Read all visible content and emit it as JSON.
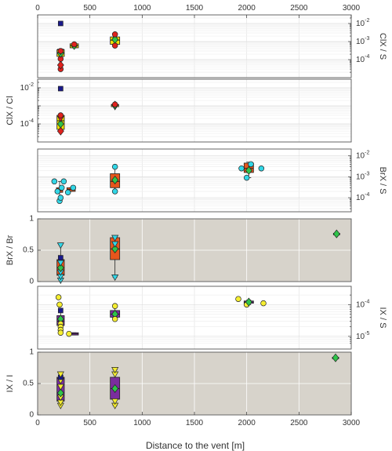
{
  "colors": {
    "panel_white": "#ffffff",
    "panel_gray": "#d7d3cb",
    "box_yellow": "#f2e200",
    "box_orange": "#e6561c",
    "box_purple": "#7a2e9e",
    "red_marker": "#e0221d",
    "green_marker": "#2fc44a",
    "cyan_marker": "#32d6e6",
    "yellow_marker": "#f5ee32",
    "navy_marker": "#1a1a8c"
  },
  "chart_data": {
    "type": "box",
    "xlabel": "Distance to the vent [m]",
    "xlim": [
      0,
      3000
    ],
    "xticks": [
      0,
      500,
      1000,
      1500,
      2000,
      2500,
      3000
    ],
    "panels": [
      {
        "id": "p1",
        "ylabel": "ClX / S",
        "label_side": "right",
        "scale": "log",
        "ylim": [
          1.5e-05,
          0.02
        ],
        "yticks": [
          0.0001,
          0.001,
          0.01
        ],
        "yticklabels": [
          "10-4",
          "10-3",
          "10-2"
        ],
        "background": "white",
        "boxes": [
          {
            "x": 220,
            "q1": 0.00015,
            "median": 0.00025,
            "q3": 0.00035,
            "whislo": 0.00012,
            "whishi": 0.0004,
            "color": "yellow",
            "width": 70
          },
          {
            "x": 350,
            "q1": 0.00045,
            "median": 0.0006,
            "q3": 0.00075,
            "whislo": 0.00045,
            "whishi": 0.00075,
            "color": "yellow",
            "width": 80
          },
          {
            "x": 740,
            "q1": 0.0007,
            "median": 0.0012,
            "q3": 0.0018,
            "whislo": 0.0006,
            "whishi": 0.0025,
            "color": "yellow",
            "width": 90
          }
        ],
        "points": [
          {
            "x": 220,
            "y": 3e-05,
            "marker": "circle",
            "color": "red"
          },
          {
            "x": 220,
            "y": 5e-05,
            "marker": "diamond",
            "color": "red"
          },
          {
            "x": 220,
            "y": 0.00011,
            "marker": "circle",
            "color": "red"
          },
          {
            "x": 220,
            "y": 0.00022,
            "marker": "diamond",
            "color": "green"
          },
          {
            "x": 220,
            "y": 0.00028,
            "marker": "triangle-down",
            "color": "red"
          },
          {
            "x": 220,
            "y": 0.0003,
            "marker": "circle",
            "color": "red"
          },
          {
            "x": 220,
            "y": 0.01,
            "marker": "square",
            "color": "navy"
          },
          {
            "x": 350,
            "y": 0.0006,
            "marker": "diamond",
            "color": "green"
          },
          {
            "x": 350,
            "y": 0.0007,
            "marker": "circle",
            "color": "red"
          },
          {
            "x": 740,
            "y": 0.0006,
            "marker": "circle",
            "color": "red"
          },
          {
            "x": 740,
            "y": 0.0013,
            "marker": "diamond",
            "color": "green"
          },
          {
            "x": 740,
            "y": 0.0025,
            "marker": "circle",
            "color": "red"
          }
        ]
      },
      {
        "id": "p2",
        "ylabel": "ClX / Cl",
        "label_side": "left",
        "scale": "log",
        "ylim": [
          1.5e-05,
          0.02
        ],
        "yticks": [
          0.0001,
          0.01
        ],
        "yticklabels": [
          "10-4",
          "10-2"
        ],
        "background": "white",
        "boxes": [
          {
            "x": 220,
            "q1": 5e-05,
            "median": 0.00015,
            "q3": 0.0003,
            "whislo": 4e-05,
            "whishi": 0.0003,
            "color": "yellow",
            "width": 70
          },
          {
            "x": 740,
            "q1": 0.0009,
            "median": 0.0011,
            "q3": 0.0012,
            "whislo": 0.0008,
            "whishi": 0.0013,
            "color": "yellow",
            "width": 70
          }
        ],
        "points": [
          {
            "x": 220,
            "y": 4e-05,
            "marker": "diamond",
            "color": "red"
          },
          {
            "x": 220,
            "y": 0.0001,
            "marker": "diamond",
            "color": "green"
          },
          {
            "x": 220,
            "y": 0.0002,
            "marker": "triangle-down",
            "color": "red"
          },
          {
            "x": 220,
            "y": 0.0003,
            "marker": "circle",
            "color": "red"
          },
          {
            "x": 220,
            "y": 0.009,
            "marker": "square",
            "color": "navy"
          },
          {
            "x": 740,
            "y": 0.0009,
            "marker": "triangle-down",
            "color": "red"
          },
          {
            "x": 740,
            "y": 0.0011,
            "marker": "diamond",
            "color": "green"
          },
          {
            "x": 740,
            "y": 0.0012,
            "marker": "circle",
            "color": "red"
          }
        ]
      },
      {
        "id": "p3",
        "ylabel": "BrX / S",
        "label_side": "right",
        "scale": "log",
        "ylim": [
          3e-05,
          0.015
        ],
        "yticks": [
          0.0001,
          0.001,
          0.01
        ],
        "yticklabels": [
          "10-4",
          "10-3",
          "10-2"
        ],
        "background": "white",
        "boxes": [
          {
            "x": 210,
            "q1": 0.00018,
            "median": 0.00022,
            "q3": 0.0003,
            "whislo": 0.0001,
            "whishi": 0.0006,
            "color": "orange",
            "width": 60
          },
          {
            "x": 320,
            "q1": 0.0002,
            "median": 0.00025,
            "q3": 0.0003,
            "whislo": 0.0002,
            "whishi": 0.0003,
            "color": "orange",
            "width": 80
          },
          {
            "x": 740,
            "q1": 0.0003,
            "median": 0.0006,
            "q3": 0.0014,
            "whislo": 0.0002,
            "whishi": 0.003,
            "color": "orange",
            "width": 90
          },
          {
            "x": 2020,
            "q1": 0.0016,
            "median": 0.0025,
            "q3": 0.0045,
            "whislo": 0.0009,
            "whishi": 0.005,
            "color": "orange",
            "width": 90
          }
        ],
        "points": [
          {
            "x": 160,
            "y": 0.0006,
            "marker": "circle",
            "color": "cyan"
          },
          {
            "x": 190,
            "y": 0.0002,
            "marker": "circle",
            "color": "cyan"
          },
          {
            "x": 210,
            "y": 7e-05,
            "marker": "circle",
            "color": "cyan"
          },
          {
            "x": 220,
            "y": 0.0001,
            "marker": "circle",
            "color": "cyan"
          },
          {
            "x": 230,
            "y": 0.0003,
            "marker": "circle",
            "color": "cyan"
          },
          {
            "x": 250,
            "y": 0.0006,
            "marker": "circle",
            "color": "cyan"
          },
          {
            "x": 290,
            "y": 0.00018,
            "marker": "circle",
            "color": "cyan"
          },
          {
            "x": 340,
            "y": 0.0003,
            "marker": "circle",
            "color": "cyan"
          },
          {
            "x": 740,
            "y": 0.0002,
            "marker": "circle",
            "color": "cyan"
          },
          {
            "x": 740,
            "y": 0.0007,
            "marker": "diamond",
            "color": "green"
          },
          {
            "x": 740,
            "y": 0.003,
            "marker": "circle",
            "color": "cyan"
          },
          {
            "x": 1950,
            "y": 0.0025,
            "marker": "circle",
            "color": "cyan"
          },
          {
            "x": 2000,
            "y": 0.0009,
            "marker": "circle",
            "color": "cyan"
          },
          {
            "x": 2020,
            "y": 0.002,
            "marker": "diamond",
            "color": "green"
          },
          {
            "x": 2040,
            "y": 0.004,
            "marker": "circle",
            "color": "cyan"
          },
          {
            "x": 2140,
            "y": 0.0025,
            "marker": "circle",
            "color": "cyan"
          }
        ]
      },
      {
        "id": "p4",
        "ylabel": "BrX / Br",
        "label_side": "left",
        "scale": "linear",
        "ylim": [
          0,
          1
        ],
        "yticks": [
          0,
          0.5,
          1
        ],
        "yticklabels": [
          "0",
          "0.5",
          "1"
        ],
        "background": "gray",
        "boxes": [
          {
            "x": 220,
            "q1": 0.1,
            "median": 0.22,
            "q3": 0.35,
            "whislo": 0.02,
            "whishi": 0.58,
            "color": "orange",
            "width": 70
          },
          {
            "x": 740,
            "q1": 0.35,
            "median": 0.52,
            "q3": 0.7,
            "whislo": 0.07,
            "whishi": 0.7,
            "color": "orange",
            "width": 90
          },
          {
            "x": 2860,
            "q1": 0.76,
            "median": 0.76,
            "q3": 0.77,
            "whislo": 0.76,
            "whishi": 0.77,
            "color": "orange",
            "width": 60
          }
        ],
        "points": [
          {
            "x": 220,
            "y": 0.02,
            "marker": "triangle-down",
            "color": "cyan"
          },
          {
            "x": 220,
            "y": 0.08,
            "marker": "triangle-down",
            "color": "cyan"
          },
          {
            "x": 220,
            "y": 0.15,
            "marker": "triangle-down",
            "color": "cyan"
          },
          {
            "x": 220,
            "y": 0.22,
            "marker": "diamond",
            "color": "green"
          },
          {
            "x": 220,
            "y": 0.3,
            "marker": "triangle-down",
            "color": "cyan"
          },
          {
            "x": 220,
            "y": 0.38,
            "marker": "square",
            "color": "navy"
          },
          {
            "x": 220,
            "y": 0.58,
            "marker": "triangle-down",
            "color": "cyan"
          },
          {
            "x": 740,
            "y": 0.07,
            "marker": "triangle-down",
            "color": "cyan"
          },
          {
            "x": 740,
            "y": 0.52,
            "marker": "diamond",
            "color": "green"
          },
          {
            "x": 740,
            "y": 0.6,
            "marker": "triangle-down",
            "color": "cyan"
          },
          {
            "x": 740,
            "y": 0.7,
            "marker": "triangle-down",
            "color": "cyan"
          },
          {
            "x": 2860,
            "y": 0.76,
            "marker": "diamond",
            "color": "green"
          }
        ]
      },
      {
        "id": "p5",
        "ylabel": "IX / S",
        "label_side": "right",
        "scale": "log",
        "ylim": [
          5e-06,
          0.0003
        ],
        "yticks": [
          1e-05,
          0.0001
        ],
        "yticklabels": [
          "10-5",
          "10-4"
        ],
        "background": "white",
        "boxes": [
          {
            "x": 220,
            "q1": 2.2e-05,
            "median": 3e-05,
            "q3": 4.5e-05,
            "whislo": 1.2e-05,
            "whishi": 6.5e-05,
            "color": "purple",
            "width": 70
          },
          {
            "x": 350,
            "q1": 1.1e-05,
            "median": 1.2e-05,
            "q3": 1.3e-05,
            "whislo": 1.1e-05,
            "whishi": 1.3e-05,
            "color": "purple",
            "width": 80
          },
          {
            "x": 740,
            "q1": 4e-05,
            "median": 5e-05,
            "q3": 6.5e-05,
            "whislo": 3.5e-05,
            "whishi": 9e-05,
            "color": "purple",
            "width": 90
          },
          {
            "x": 2020,
            "q1": 0.00011,
            "median": 0.00012,
            "q3": 0.00013,
            "whislo": 0.0001,
            "whishi": 0.00014,
            "color": "purple",
            "width": 90
          }
        ],
        "points": [
          {
            "x": 200,
            "y": 0.00017,
            "marker": "circle",
            "color": "yellow"
          },
          {
            "x": 210,
            "y": 0.0001,
            "marker": "circle",
            "color": "yellow"
          },
          {
            "x": 220,
            "y": 6.5e-05,
            "marker": "square",
            "color": "navy"
          },
          {
            "x": 220,
            "y": 3.5e-05,
            "marker": "diamond",
            "color": "green"
          },
          {
            "x": 220,
            "y": 2.5e-05,
            "marker": "circle",
            "color": "yellow"
          },
          {
            "x": 220,
            "y": 2e-05,
            "marker": "circle",
            "color": "yellow"
          },
          {
            "x": 220,
            "y": 1.6e-05,
            "marker": "circle",
            "color": "yellow"
          },
          {
            "x": 220,
            "y": 1.3e-05,
            "marker": "circle",
            "color": "yellow"
          },
          {
            "x": 300,
            "y": 1.2e-05,
            "marker": "circle",
            "color": "yellow"
          },
          {
            "x": 740,
            "y": 9e-05,
            "marker": "circle",
            "color": "yellow"
          },
          {
            "x": 740,
            "y": 5e-05,
            "marker": "diamond",
            "color": "green"
          },
          {
            "x": 740,
            "y": 3.5e-05,
            "marker": "circle",
            "color": "yellow"
          },
          {
            "x": 1920,
            "y": 0.00015,
            "marker": "circle",
            "color": "yellow"
          },
          {
            "x": 2000,
            "y": 0.0001,
            "marker": "circle",
            "color": "yellow"
          },
          {
            "x": 2020,
            "y": 0.00012,
            "marker": "diamond",
            "color": "green"
          },
          {
            "x": 2160,
            "y": 0.00011,
            "marker": "circle",
            "color": "yellow"
          }
        ]
      },
      {
        "id": "p6",
        "ylabel": "IX / I",
        "label_side": "left",
        "scale": "linear",
        "ylim": [
          0,
          1
        ],
        "yticks": [
          0,
          0.5,
          1
        ],
        "yticklabels": [
          "0",
          "0.5",
          "1"
        ],
        "background": "gray",
        "boxes": [
          {
            "x": 220,
            "q1": 0.22,
            "median": 0.35,
            "q3": 0.6,
            "whislo": 0.15,
            "whishi": 0.66,
            "color": "purple",
            "width": 70
          },
          {
            "x": 740,
            "q1": 0.25,
            "median": 0.42,
            "q3": 0.6,
            "whislo": 0.15,
            "whishi": 0.72,
            "color": "purple",
            "width": 90
          },
          {
            "x": 2850,
            "q1": 0.9,
            "median": 0.91,
            "q3": 0.92,
            "whislo": 0.9,
            "whishi": 0.92,
            "color": "purple",
            "width": 60
          }
        ],
        "points": [
          {
            "x": 220,
            "y": 0.15,
            "marker": "triangle-down",
            "color": "yellow"
          },
          {
            "x": 220,
            "y": 0.2,
            "marker": "triangle-down",
            "color": "yellow"
          },
          {
            "x": 220,
            "y": 0.28,
            "marker": "triangle-down",
            "color": "yellow"
          },
          {
            "x": 220,
            "y": 0.35,
            "marker": "diamond",
            "color": "green"
          },
          {
            "x": 220,
            "y": 0.45,
            "marker": "triangle-down",
            "color": "yellow"
          },
          {
            "x": 220,
            "y": 0.55,
            "marker": "triangle-down",
            "color": "yellow"
          },
          {
            "x": 220,
            "y": 0.6,
            "marker": "square",
            "color": "navy"
          },
          {
            "x": 220,
            "y": 0.65,
            "marker": "triangle-down",
            "color": "yellow"
          },
          {
            "x": 740,
            "y": 0.15,
            "marker": "triangle-down",
            "color": "yellow"
          },
          {
            "x": 740,
            "y": 0.22,
            "marker": "triangle-down",
            "color": "yellow"
          },
          {
            "x": 740,
            "y": 0.42,
            "marker": "diamond",
            "color": "green"
          },
          {
            "x": 740,
            "y": 0.65,
            "marker": "triangle-down",
            "color": "yellow"
          },
          {
            "x": 740,
            "y": 0.72,
            "marker": "triangle-down",
            "color": "yellow"
          },
          {
            "x": 2850,
            "y": 0.91,
            "marker": "diamond",
            "color": "green"
          }
        ]
      }
    ]
  }
}
